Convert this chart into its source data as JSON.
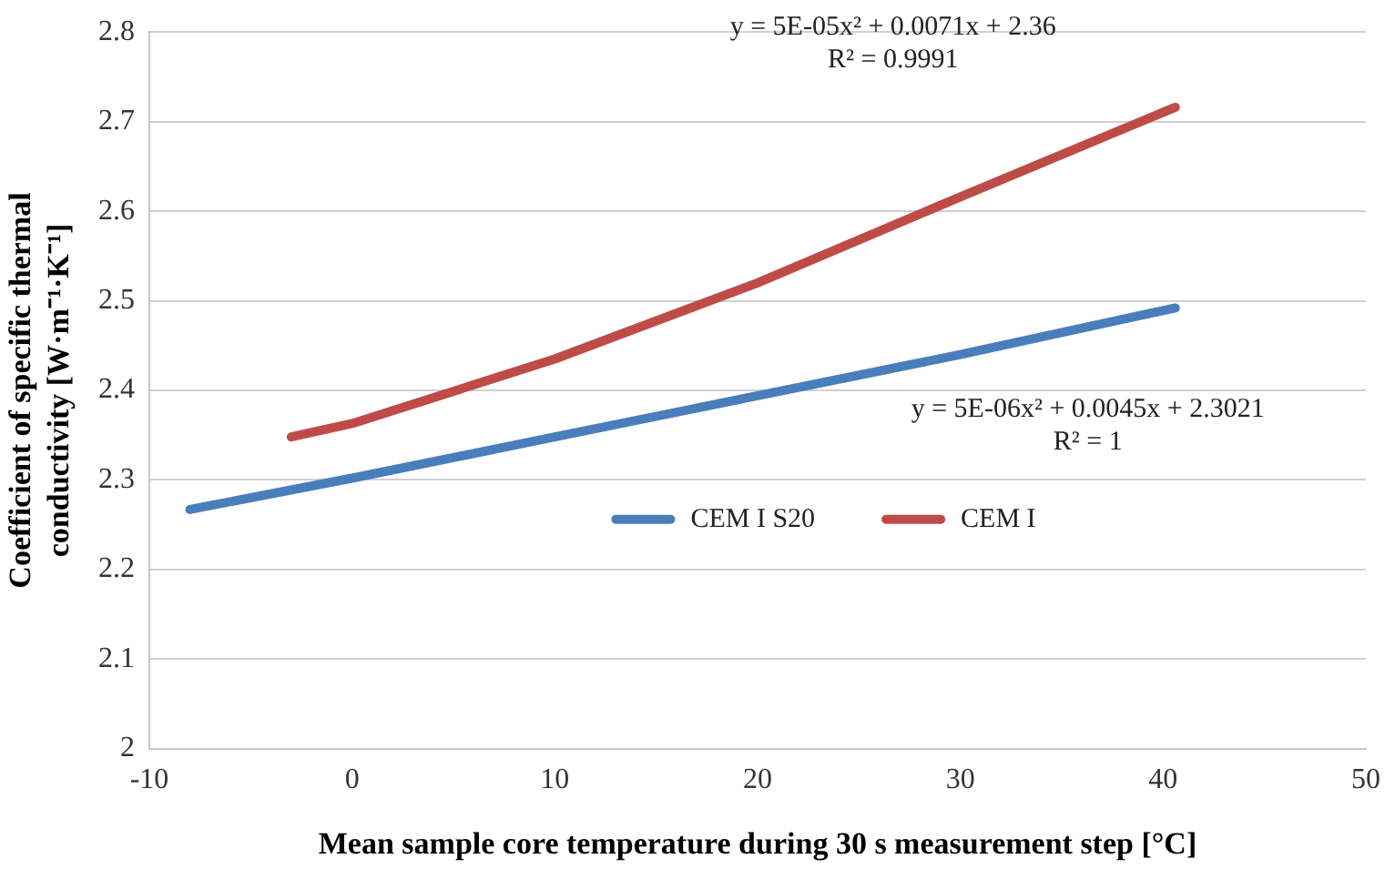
{
  "chart_data": {
    "type": "line",
    "xlabel": "Mean sample core temperature during 30 s measurement step [°C]",
    "ylabel": "Coefficient of specific thermal conductivity [W·m⁻¹·K⁻¹]",
    "xlim": [
      -10,
      50
    ],
    "xticks": [
      -10,
      0,
      10,
      20,
      30,
      40,
      50
    ],
    "ylim": [
      2,
      2.8
    ],
    "yticks": [
      2,
      2.1,
      2.2,
      2.3,
      2.4,
      2.5,
      2.6,
      2.7,
      2.8
    ],
    "series": [
      {
        "name": "CEM I S20",
        "color": "#4a7ebb",
        "x": [
          -8,
          0,
          10,
          20,
          30,
          40.6
        ],
        "values": [
          2.267,
          2.302,
          2.348,
          2.394,
          2.44,
          2.492
        ]
      },
      {
        "name": "CEM I",
        "color": "#be4b48",
        "x": [
          -3,
          0,
          10,
          20,
          30,
          40.6
        ],
        "values": [
          2.348,
          2.363,
          2.435,
          2.52,
          2.616,
          2.716
        ]
      }
    ],
    "annotations": [
      "y = 5E-05x² + 0.0071x + 2.36\nR² = 0.9991",
      "y = 5E-06x² + 0.0045x + 2.3021\nR² = 1"
    ],
    "grid": "y",
    "legend": "bottom",
    "marker": "none",
    "line_style": "solid"
  }
}
